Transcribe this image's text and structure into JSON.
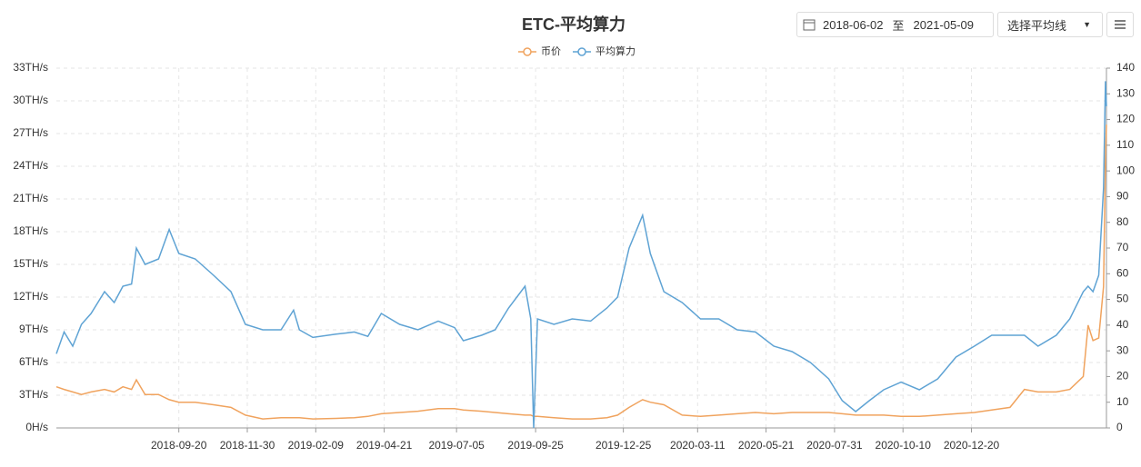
{
  "controls": {
    "start_date": "2018-06-02",
    "separator": "至",
    "end_date": "2021-05-09",
    "average_select": "选择平均线"
  },
  "chart_data": {
    "type": "line",
    "title": "ETC-平均算力",
    "x": [
      "2018-05-16",
      "2018-05-24",
      "2018-06-02",
      "2018-06-11",
      "2018-06-21",
      "2018-07-05",
      "2018-07-15",
      "2018-07-24",
      "2018-08-02",
      "2018-08-07",
      "2018-08-16",
      "2018-08-30",
      "2018-09-10",
      "2018-09-20",
      "2018-10-07",
      "2018-10-26",
      "2018-11-13",
      "2018-11-28",
      "2018-12-16",
      "2019-01-04",
      "2019-01-17",
      "2019-01-23",
      "2019-02-06",
      "2019-03-02",
      "2019-03-21",
      "2019-04-04",
      "2019-04-18",
      "2019-05-07",
      "2019-05-26",
      "2019-06-16",
      "2019-07-03",
      "2019-07-12",
      "2019-07-31",
      "2019-08-14",
      "2019-08-28",
      "2019-09-14",
      "2019-09-20",
      "2019-09-23",
      "2019-09-27",
      "2019-10-14",
      "2019-11-02",
      "2019-11-21",
      "2019-12-08",
      "2019-12-19",
      "2019-12-31",
      "2020-01-14",
      "2020-01-22",
      "2020-02-05",
      "2020-02-24",
      "2020-03-14",
      "2020-04-02",
      "2020-04-21",
      "2020-05-10",
      "2020-05-29",
      "2020-06-17",
      "2020-07-06",
      "2020-07-25",
      "2020-08-08",
      "2020-08-22",
      "2020-09-05",
      "2020-09-20",
      "2020-10-08",
      "2020-10-27",
      "2020-11-15",
      "2020-12-04",
      "2020-12-23",
      "2021-01-10",
      "2021-01-29",
      "2021-02-13",
      "2021-02-27",
      "2021-03-18",
      "2021-04-01",
      "2021-04-15",
      "2021-04-20",
      "2021-04-25",
      "2021-05-01",
      "2021-05-06",
      "2021-05-08",
      "2021-05-09"
    ],
    "series": [
      {
        "name": "币价",
        "color": "#f0a35e",
        "axis": "y2",
        "values": [
          16,
          15,
          14,
          13,
          14,
          15,
          14,
          16,
          15,
          18.7,
          13,
          13,
          11,
          10,
          10,
          9,
          8,
          5,
          3.5,
          4,
          4,
          4,
          3.5,
          3.7,
          4,
          4.5,
          5.5,
          6,
          6.5,
          7.5,
          7.5,
          7,
          6.5,
          6,
          5.5,
          5,
          5,
          4.5,
          4.5,
          4,
          3.5,
          3.5,
          4,
          5,
          8,
          11,
          10,
          9,
          5,
          4.5,
          5,
          5.5,
          6,
          5.5,
          6,
          6,
          6,
          5.5,
          5,
          5,
          5,
          4.5,
          4.5,
          5,
          5.5,
          6,
          7,
          8,
          15,
          14,
          14,
          15,
          20,
          40,
          34,
          35,
          55,
          105,
          118
        ]
      },
      {
        "name": "平均算力",
        "color": "#5fa3d4",
        "values": [
          6.8,
          8.8,
          7.5,
          9.5,
          10.5,
          12.5,
          11.5,
          13,
          13.2,
          16.5,
          15,
          15.5,
          18.2,
          16,
          15.5,
          14,
          12.5,
          9.5,
          9,
          9,
          10.8,
          9,
          8.3,
          8.6,
          8.8,
          8.4,
          10.5,
          9.5,
          9,
          9.8,
          9.2,
          8,
          8.5,
          9,
          11,
          13,
          10,
          0,
          10,
          9.5,
          10,
          9.8,
          11,
          12,
          16.5,
          19.5,
          16,
          12.5,
          11.5,
          10,
          10,
          9,
          8.8,
          7.5,
          7,
          6,
          4.5,
          2.5,
          1.5,
          2.5,
          3.5,
          4.2,
          3.5,
          4.5,
          6.5,
          7.5,
          8.5,
          8.5,
          8.5,
          7.5,
          8.5,
          10,
          12.5,
          13,
          12.5,
          14,
          22,
          31.8,
          29.5
        ]
      }
    ],
    "xlim": [
      "2018-05-16",
      "2021-05-09"
    ],
    "xticks": [
      "2018-09-20",
      "2018-11-30",
      "2019-02-09",
      "2019-04-21",
      "2019-07-05",
      "2019-09-25",
      "2019-12-25",
      "2020-03-11",
      "2020-05-21",
      "2020-07-31",
      "2020-10-10",
      "2020-12-20"
    ],
    "ylim": [
      0,
      33
    ],
    "yticks": [
      {
        "value": 0,
        "label": "0H/s"
      },
      {
        "value": 3,
        "label": "3TH/s"
      },
      {
        "value": 6,
        "label": "6TH/s"
      },
      {
        "value": 9,
        "label": "9TH/s"
      },
      {
        "value": 12,
        "label": "12TH/s"
      },
      {
        "value": 15,
        "label": "15TH/s"
      },
      {
        "value": 18,
        "label": "18TH/s"
      },
      {
        "value": 21,
        "label": "21TH/s"
      },
      {
        "value": 24,
        "label": "24TH/s"
      },
      {
        "value": 27,
        "label": "27TH/s"
      },
      {
        "value": 30,
        "label": "30TH/s"
      },
      {
        "value": 33,
        "label": "33TH/s"
      }
    ],
    "y2lim": [
      0,
      140
    ],
    "y2ticks": [
      0,
      10,
      20,
      30,
      40,
      50,
      60,
      70,
      80,
      90,
      100,
      110,
      120,
      130,
      140
    ],
    "grid": true
  }
}
